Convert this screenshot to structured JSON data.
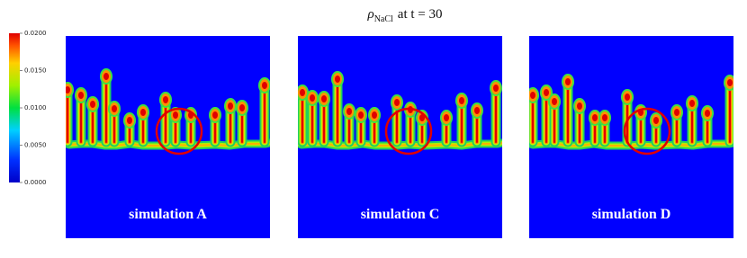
{
  "title": {
    "symbol": "ρ",
    "subscript": "NaCl",
    "text": "at t = 30"
  },
  "colorbar": {
    "lim": [
      0,
      0.02
    ],
    "ticks": [
      {
        "value": 0.02,
        "label": "0.0200"
      },
      {
        "value": 0.015,
        "label": "0.0150"
      },
      {
        "value": 0.01,
        "label": "0.0100"
      },
      {
        "value": 0.005,
        "label": "0.0050"
      },
      {
        "value": 0,
        "label": "0.0000"
      }
    ]
  },
  "panels": [
    {
      "label": "simulation A"
    },
    {
      "label": "simulation C"
    },
    {
      "label": "simulation D"
    }
  ]
}
